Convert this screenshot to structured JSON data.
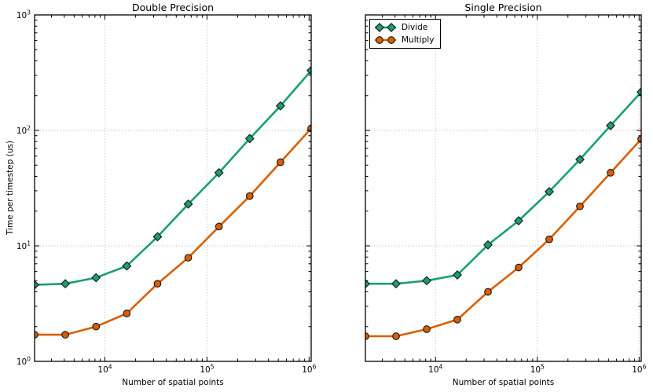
{
  "figure": {
    "ylabel": "Time per timestep (us)",
    "background": "#ffffff"
  },
  "legend": {
    "location": "upper-left-of-single-precision-plot",
    "items": [
      {
        "label": "Divide",
        "color": "#1b9e77",
        "marker": "diamond"
      },
      {
        "label": "Multiply",
        "color": "#d95f02",
        "marker": "circle"
      }
    ]
  },
  "chart_data": [
    {
      "type": "line",
      "title": "Double Precision",
      "xlabel": "Number of spatial points",
      "ylabel": "Time per timestep (us)",
      "xscale": "log",
      "yscale": "log",
      "xlim": [
        2048,
        1048576
      ],
      "ylim": [
        1,
        1000
      ],
      "grid": true,
      "legend_visible": false,
      "x": [
        2048,
        4096,
        8192,
        16384,
        32768,
        65536,
        131072,
        262144,
        524288,
        1048576
      ],
      "series": [
        {
          "name": "Divide",
          "color": "#1b9e77",
          "marker": "diamond",
          "values": [
            4.6,
            4.7,
            5.3,
            6.7,
            12,
            23,
            43,
            85,
            163,
            330
          ]
        },
        {
          "name": "Multiply",
          "color": "#d95f02",
          "marker": "circle",
          "values": [
            1.7,
            1.7,
            2.0,
            2.6,
            4.7,
            7.9,
            14.7,
            27,
            53,
            104
          ]
        }
      ],
      "x_ticks": {
        "values": [
          10000,
          100000,
          1000000
        ],
        "labels": [
          "10^4",
          "10^5",
          "10^6"
        ]
      },
      "y_ticks": {
        "values": [
          1,
          10,
          100,
          1000
        ],
        "labels": [
          "10^0",
          "10^1",
          "10^2",
          "10^3"
        ]
      }
    },
    {
      "type": "line",
      "title": "Single Precision",
      "xlabel": "Number of spatial points",
      "ylabel": "",
      "xscale": "log",
      "yscale": "log",
      "xlim": [
        2048,
        1048576
      ],
      "ylim": [
        1,
        1000
      ],
      "grid": true,
      "legend_visible": true,
      "x": [
        2048,
        4096,
        8192,
        16384,
        32768,
        65536,
        131072,
        262144,
        524288,
        1048576
      ],
      "series": [
        {
          "name": "Divide",
          "color": "#1b9e77",
          "marker": "diamond",
          "values": [
            4.7,
            4.7,
            5.0,
            5.6,
            10.2,
            16.5,
            29.5,
            56,
            110,
            215
          ]
        },
        {
          "name": "Multiply",
          "color": "#d95f02",
          "marker": "circle",
          "values": [
            1.65,
            1.65,
            1.9,
            2.3,
            4.0,
            6.5,
            11.4,
            22,
            43,
            84
          ]
        }
      ],
      "x_ticks": {
        "values": [
          10000,
          100000,
          1000000
        ],
        "labels": [
          "10^4",
          "10^5",
          "10^6"
        ]
      },
      "y_ticks": {
        "values": [
          1,
          10,
          100,
          1000
        ],
        "labels": [
          "10^0",
          "10^1",
          "10^2",
          "10^3"
        ]
      }
    }
  ]
}
